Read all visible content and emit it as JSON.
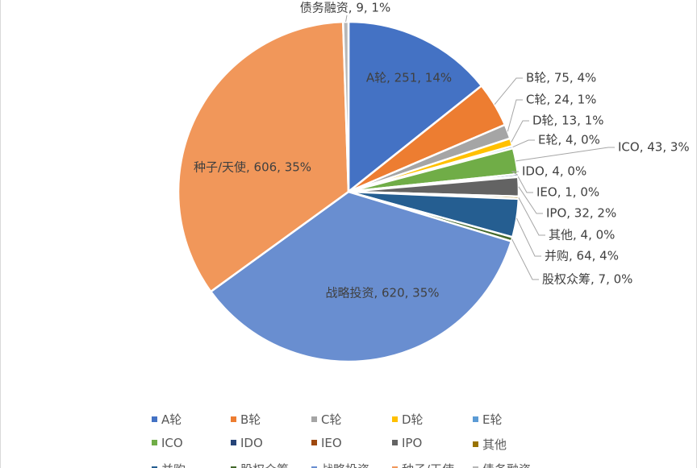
{
  "chart_data": {
    "type": "pie",
    "title": "",
    "label_format": "{name}, {value}, {pct}",
    "slices": [
      {
        "name": "A轮",
        "value": 251,
        "pct": "14%",
        "color": "#4472C4"
      },
      {
        "name": "B轮",
        "value": 75,
        "pct": "4%",
        "color": "#ED7D31"
      },
      {
        "name": "C轮",
        "value": 24,
        "pct": "1%",
        "color": "#A5A5A5"
      },
      {
        "name": "D轮",
        "value": 13,
        "pct": "1%",
        "color": "#FFC000"
      },
      {
        "name": "E轮",
        "value": 4,
        "pct": "0%",
        "color": "#5B9BD5"
      },
      {
        "name": "ICO",
        "value": 43,
        "pct": "3%",
        "color": "#70AD47"
      },
      {
        "name": "IDO",
        "value": 4,
        "pct": "0%",
        "color": "#264478"
      },
      {
        "name": "IEO",
        "value": 1,
        "pct": "0%",
        "color": "#9E480E"
      },
      {
        "name": "IPO",
        "value": 32,
        "pct": "2%",
        "color": "#636363"
      },
      {
        "name": "其他",
        "value": 4,
        "pct": "0%",
        "color": "#997300"
      },
      {
        "name": "并购",
        "value": 64,
        "pct": "4%",
        "color": "#255E91"
      },
      {
        "name": "股权众筹",
        "value": 7,
        "pct": "0%",
        "color": "#43682B"
      },
      {
        "name": "战略投资",
        "value": 620,
        "pct": "35%",
        "color": "#698ED0"
      },
      {
        "name": "种子/天使",
        "value": 606,
        "pct": "35%",
        "color": "#F1975A"
      },
      {
        "name": "债务融资",
        "value": 9,
        "pct": "1%",
        "color": "#B7B7B7"
      }
    ],
    "legend_position": "bottom"
  },
  "legend": {
    "items": [
      "A轮",
      "B轮",
      "C轮",
      "D轮",
      "E轮",
      "ICO",
      "IDO",
      "IEO",
      "IPO",
      "其他",
      "并购",
      "股权众筹",
      "战略投资",
      "种子/天使",
      "债务融资"
    ]
  }
}
